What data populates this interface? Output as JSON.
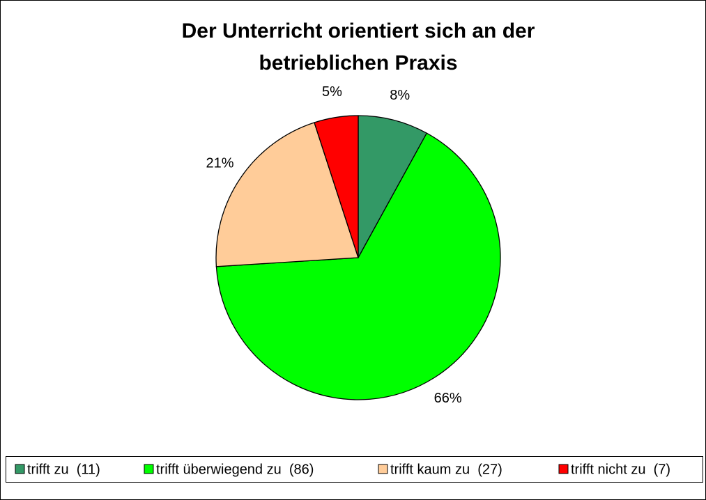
{
  "chart_data": {
    "type": "pie",
    "title": [
      "Der Unterricht orientiert sich an der",
      "betrieblichen Praxis"
    ],
    "categories": [
      "trifft zu  (11)",
      "trifft überwiegend zu  (86)",
      "trifft kaum zu  (27)",
      "trifft nicht zu  (7)"
    ],
    "values": [
      8,
      66,
      21,
      5
    ],
    "value_labels": [
      "8%",
      "66%",
      "21%",
      "5%"
    ],
    "colors": [
      "#339966",
      "#00ff00",
      "#ffcc99",
      "#ff0000"
    ],
    "legend": "bottom"
  }
}
